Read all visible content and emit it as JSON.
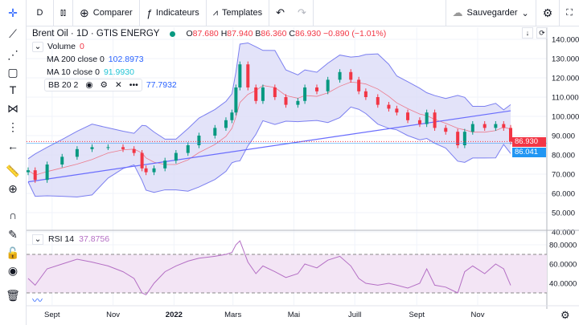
{
  "toolbar": {
    "interval": "D",
    "compare": "Comparer",
    "indicators": "Indicateurs",
    "templates": "Templates",
    "save": "Sauvegarder"
  },
  "legend": {
    "symbol": "Brent Oil · 1D · GTIS ENERGY",
    "o_label": "O",
    "o": "87.680",
    "h_label": "H",
    "h": "87.940",
    "b_label": "B",
    "b": "86.360",
    "c_label": "C",
    "c": "86.930",
    "change": "−0.890 (−1.01%)",
    "volume_label": "Volume",
    "volume": "0",
    "ma200_label": "MA 200 close 0",
    "ma200": "102.8973",
    "ma10_label": "MA 10 close 0",
    "ma10": "91.9930",
    "bb_label": "BB 20 2",
    "bb": "77.7932"
  },
  "rsi": {
    "label": "RSI 14",
    "value": "37.8756"
  },
  "price_labels": {
    "last": "86.930",
    "ma": "86.041"
  },
  "colors": {
    "up": "#089981",
    "down": "#f23645",
    "bb": "#7b7ff0",
    "bb_fill": "#dcdcf7",
    "ma200": "#6a6dfd",
    "ma10": "#f23645",
    "rsi": "#b46fc4",
    "rsi_fill": "#f3e5f5",
    "last": "#f23645",
    "ma_label": "#2196f3"
  },
  "chart_data": {
    "type": "candlestick",
    "x": [
      "2021-08-08",
      "2021-08-15",
      "2021-08-27",
      "2021-09-11",
      "2021-09-26",
      "2021-10-11",
      "2021-10-27",
      "2021-11-11",
      "2021-11-22",
      "2021-11-30",
      "2021-12-04",
      "2021-12-12",
      "2021-12-23",
      "2022-01-03",
      "2022-01-15",
      "2022-01-26",
      "2022-02-11",
      "2022-02-22",
      "2022-02-28",
      "2022-03-04",
      "2022-03-08",
      "2022-03-16",
      "2022-03-24",
      "2022-03-31",
      "2022-04-12",
      "2022-04-23",
      "2022-05-05",
      "2022-05-12",
      "2022-05-24",
      "2022-06-04",
      "2022-06-16",
      "2022-06-27",
      "2022-07-05",
      "2022-07-12",
      "2022-07-24",
      "2022-08-04",
      "2022-08-12",
      "2022-08-23",
      "2022-09-04",
      "2022-09-11",
      "2022-09-19",
      "2022-09-30",
      "2022-10-12",
      "2022-10-19",
      "2022-10-27",
      "2022-11-08",
      "2022-11-19",
      "2022-11-27",
      "2022-12-04"
    ],
    "close": [
      72,
      67,
      75,
      79,
      83,
      84,
      84,
      83,
      81,
      73,
      71,
      73,
      77,
      81,
      85,
      90,
      94,
      98,
      102,
      115,
      127,
      115,
      108,
      115,
      110,
      106,
      108,
      115,
      113,
      119,
      123,
      119,
      113,
      110,
      106,
      104,
      102,
      98,
      96,
      102,
      94,
      92,
      85,
      92,
      96,
      94,
      96,
      94,
      86.93
    ],
    "rsi": [
      45,
      38,
      55,
      60,
      65,
      62,
      58,
      52,
      45,
      30,
      28,
      40,
      52,
      58,
      63,
      66,
      68,
      70,
      72,
      80,
      84,
      62,
      50,
      58,
      52,
      46,
      50,
      60,
      56,
      64,
      68,
      58,
      45,
      40,
      38,
      40,
      38,
      35,
      40,
      55,
      38,
      36,
      30,
      52,
      58,
      50,
      60,
      55,
      37.88
    ],
    "ma200_start": 66,
    "ma200_end": 102.8973,
    "price_axis": {
      "min": 40,
      "max": 140,
      "ticks": [
        "140.000",
        "130.000",
        "120.000",
        "110.000",
        "100.000",
        "90.000",
        "80.000",
        "70.000",
        "60.000",
        "50.000",
        "40.000"
      ]
    },
    "rsi_axis": {
      "ticks": [
        "80.0000",
        "60.0000",
        "40.0000"
      ],
      "bands": [
        70,
        30
      ]
    },
    "time_ticks": [
      {
        "label": "Sept",
        "date": "2021-09-01"
      },
      {
        "label": "Nov",
        "date": "2021-11-01"
      },
      {
        "label": "2022",
        "date": "2022-01-01"
      },
      {
        "label": "Mars",
        "date": "2022-03-01"
      },
      {
        "label": "Mai",
        "date": "2022-05-01"
      },
      {
        "label": "Juill",
        "date": "2022-07-01"
      },
      {
        "label": "Sept",
        "date": "2022-09-01"
      },
      {
        "label": "Nov",
        "date": "2022-11-01"
      }
    ]
  }
}
